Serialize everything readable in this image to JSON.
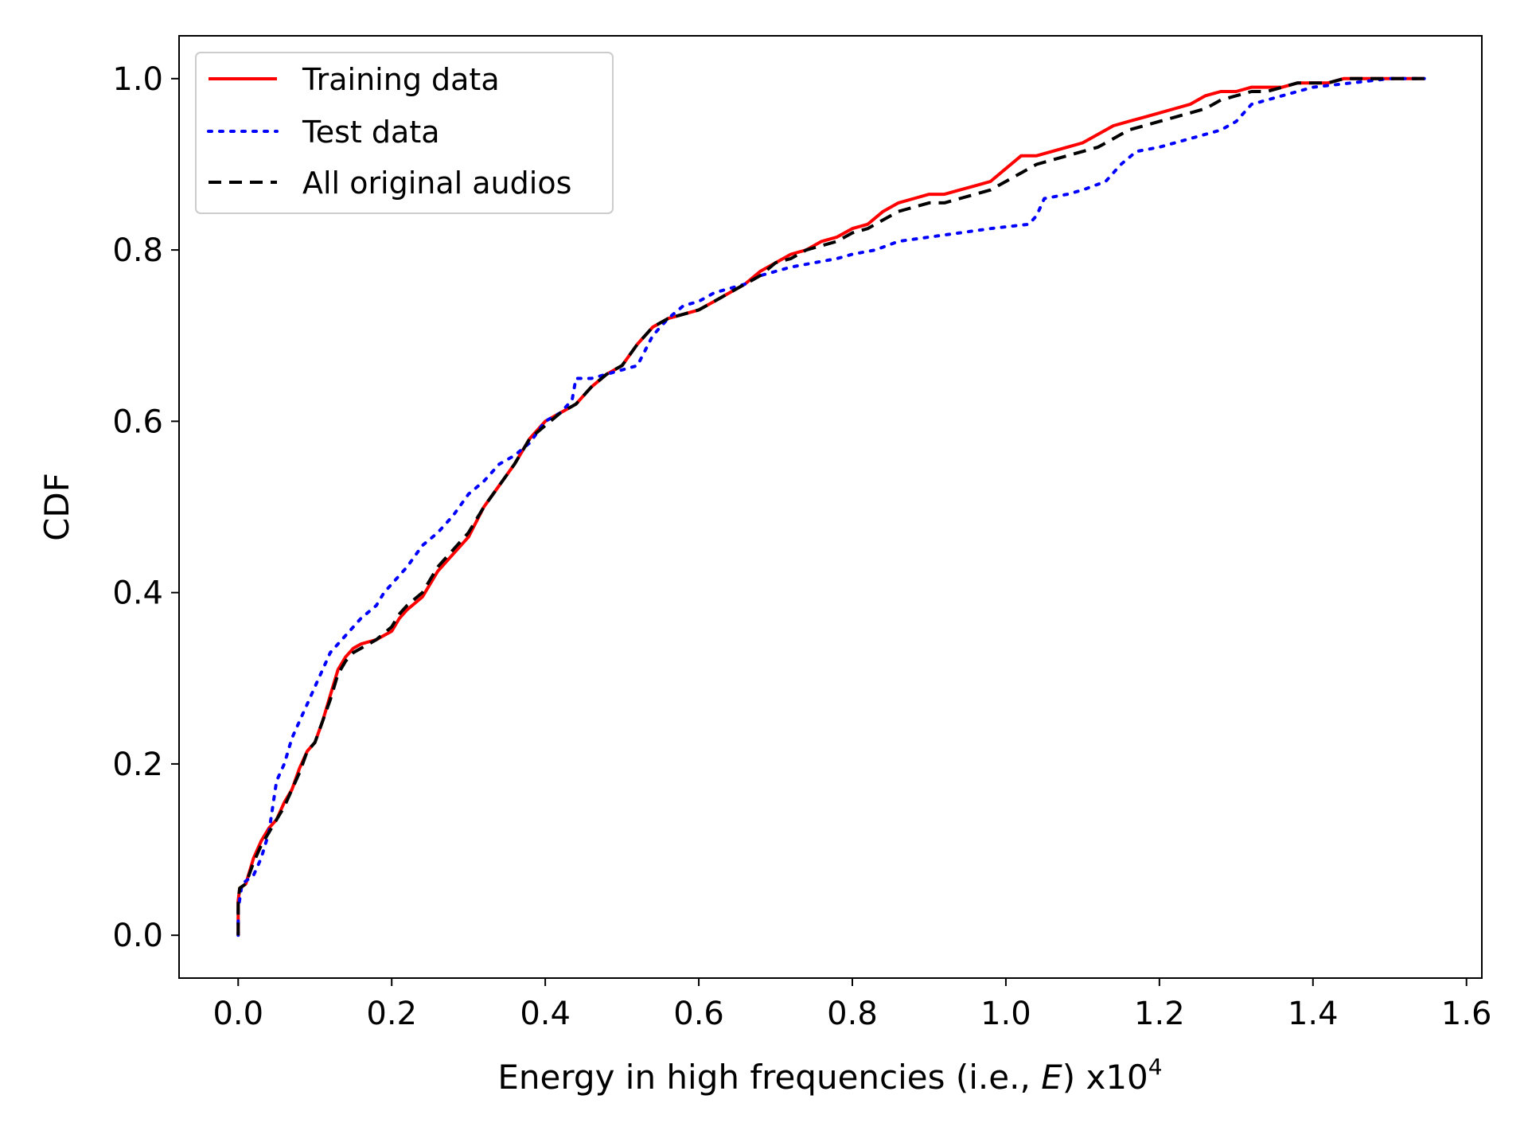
{
  "chart_data": {
    "type": "line",
    "title": "",
    "xlabel": "Energy in high frequencies (i.e., ",
    "xlabel_var": "E",
    "xlabel_suffix": ") x10",
    "xlabel_exponent": "4",
    "ylabel": "CDF",
    "xlim": [
      -0.077,
      1.62
    ],
    "ylim": [
      -0.05,
      1.05
    ],
    "x_ticks": [
      0.0,
      0.2,
      0.4,
      0.6,
      0.8,
      1.0,
      1.2,
      1.4,
      1.6
    ],
    "x_tick_labels": [
      "0.0",
      "0.2",
      "0.4",
      "0.6",
      "0.8",
      "1.0",
      "1.2",
      "1.4",
      "1.6"
    ],
    "y_ticks": [
      0.0,
      0.2,
      0.4,
      0.6,
      0.8,
      1.0
    ],
    "y_tick_labels": [
      "0.0",
      "0.2",
      "0.4",
      "0.6",
      "0.8",
      "1.0"
    ],
    "grid": false,
    "legend_position": "top-left",
    "series": [
      {
        "name": "Training data",
        "color": "#ff0000",
        "style": "solid",
        "x": [
          0.0,
          0.0,
          0.002,
          0.01,
          0.02,
          0.03,
          0.04,
          0.05,
          0.06,
          0.07,
          0.08,
          0.09,
          0.1,
          0.11,
          0.12,
          0.13,
          0.14,
          0.15,
          0.16,
          0.18,
          0.2,
          0.21,
          0.22,
          0.24,
          0.26,
          0.28,
          0.3,
          0.32,
          0.34,
          0.36,
          0.38,
          0.4,
          0.42,
          0.44,
          0.46,
          0.48,
          0.5,
          0.52,
          0.54,
          0.56,
          0.58,
          0.6,
          0.62,
          0.64,
          0.66,
          0.68,
          0.7,
          0.72,
          0.74,
          0.76,
          0.78,
          0.8,
          0.82,
          0.84,
          0.86,
          0.88,
          0.9,
          0.92,
          0.94,
          0.96,
          0.98,
          1.0,
          1.02,
          1.04,
          1.06,
          1.08,
          1.1,
          1.12,
          1.14,
          1.16,
          1.18,
          1.2,
          1.22,
          1.24,
          1.26,
          1.28,
          1.3,
          1.32,
          1.34,
          1.36,
          1.38,
          1.4,
          1.42,
          1.44,
          1.46,
          1.48,
          1.5,
          1.52,
          1.545
        ],
        "y": [
          0.0,
          0.04,
          0.055,
          0.06,
          0.09,
          0.11,
          0.125,
          0.135,
          0.155,
          0.17,
          0.195,
          0.215,
          0.225,
          0.25,
          0.28,
          0.31,
          0.325,
          0.335,
          0.34,
          0.345,
          0.355,
          0.37,
          0.38,
          0.395,
          0.425,
          0.445,
          0.465,
          0.5,
          0.525,
          0.55,
          0.58,
          0.6,
          0.61,
          0.62,
          0.64,
          0.655,
          0.665,
          0.69,
          0.71,
          0.72,
          0.725,
          0.73,
          0.74,
          0.75,
          0.76,
          0.775,
          0.785,
          0.795,
          0.8,
          0.81,
          0.815,
          0.825,
          0.83,
          0.845,
          0.855,
          0.86,
          0.865,
          0.865,
          0.87,
          0.875,
          0.88,
          0.895,
          0.91,
          0.91,
          0.915,
          0.92,
          0.925,
          0.935,
          0.945,
          0.95,
          0.955,
          0.96,
          0.965,
          0.97,
          0.98,
          0.985,
          0.985,
          0.99,
          0.99,
          0.99,
          0.995,
          0.995,
          0.995,
          1.0,
          1.0,
          1.0,
          1.0,
          1.0,
          1.0
        ]
      },
      {
        "name": "Test data",
        "color": "#0000ff",
        "style": "dotted",
        "x": [
          0.0,
          0.0,
          0.005,
          0.02,
          0.03,
          0.04,
          0.05,
          0.06,
          0.07,
          0.08,
          0.09,
          0.1,
          0.11,
          0.12,
          0.13,
          0.14,
          0.15,
          0.16,
          0.18,
          0.19,
          0.2,
          0.22,
          0.24,
          0.26,
          0.28,
          0.3,
          0.32,
          0.34,
          0.36,
          0.38,
          0.4,
          0.42,
          0.435,
          0.44,
          0.46,
          0.48,
          0.5,
          0.52,
          0.54,
          0.56,
          0.58,
          0.6,
          0.62,
          0.64,
          0.66,
          0.68,
          0.7,
          0.72,
          0.75,
          0.78,
          0.8,
          0.83,
          0.86,
          0.9,
          0.94,
          0.98,
          1.03,
          1.04,
          1.05,
          1.08,
          1.1,
          1.13,
          1.15,
          1.17,
          1.2,
          1.24,
          1.28,
          1.3,
          1.32,
          1.36,
          1.4,
          1.45,
          1.5,
          1.545
        ],
        "y": [
          0.0,
          0.03,
          0.06,
          0.07,
          0.09,
          0.12,
          0.18,
          0.2,
          0.23,
          0.25,
          0.27,
          0.29,
          0.31,
          0.33,
          0.34,
          0.35,
          0.36,
          0.37,
          0.385,
          0.4,
          0.41,
          0.43,
          0.455,
          0.47,
          0.49,
          0.515,
          0.53,
          0.55,
          0.56,
          0.575,
          0.6,
          0.61,
          0.625,
          0.65,
          0.65,
          0.655,
          0.66,
          0.665,
          0.7,
          0.72,
          0.735,
          0.74,
          0.75,
          0.755,
          0.76,
          0.77,
          0.775,
          0.78,
          0.785,
          0.79,
          0.795,
          0.8,
          0.81,
          0.815,
          0.82,
          0.825,
          0.83,
          0.84,
          0.86,
          0.865,
          0.87,
          0.88,
          0.9,
          0.915,
          0.92,
          0.93,
          0.94,
          0.95,
          0.97,
          0.98,
          0.99,
          0.995,
          1.0,
          1.0
        ]
      },
      {
        "name": "All original audios",
        "color": "#000000",
        "style": "dashed",
        "x": [
          0.0,
          0.0,
          0.002,
          0.01,
          0.02,
          0.03,
          0.04,
          0.05,
          0.06,
          0.07,
          0.08,
          0.09,
          0.1,
          0.11,
          0.12,
          0.13,
          0.14,
          0.15,
          0.16,
          0.18,
          0.2,
          0.21,
          0.22,
          0.24,
          0.26,
          0.28,
          0.3,
          0.32,
          0.34,
          0.36,
          0.38,
          0.4,
          0.42,
          0.44,
          0.46,
          0.48,
          0.5,
          0.52,
          0.54,
          0.56,
          0.58,
          0.6,
          0.62,
          0.64,
          0.66,
          0.68,
          0.7,
          0.72,
          0.74,
          0.76,
          0.78,
          0.8,
          0.82,
          0.84,
          0.86,
          0.88,
          0.9,
          0.92,
          0.94,
          0.96,
          0.98,
          1.0,
          1.02,
          1.04,
          1.06,
          1.08,
          1.1,
          1.12,
          1.14,
          1.16,
          1.18,
          1.2,
          1.22,
          1.24,
          1.26,
          1.28,
          1.3,
          1.32,
          1.34,
          1.36,
          1.38,
          1.4,
          1.42,
          1.44,
          1.46,
          1.48,
          1.5,
          1.52,
          1.545
        ],
        "y": [
          0.0,
          0.04,
          0.055,
          0.06,
          0.085,
          0.105,
          0.12,
          0.135,
          0.15,
          0.17,
          0.19,
          0.215,
          0.225,
          0.25,
          0.275,
          0.305,
          0.32,
          0.33,
          0.335,
          0.345,
          0.36,
          0.375,
          0.385,
          0.4,
          0.43,
          0.45,
          0.47,
          0.5,
          0.525,
          0.55,
          0.58,
          0.595,
          0.61,
          0.62,
          0.64,
          0.655,
          0.665,
          0.69,
          0.71,
          0.72,
          0.725,
          0.73,
          0.74,
          0.75,
          0.76,
          0.77,
          0.785,
          0.79,
          0.8,
          0.805,
          0.81,
          0.82,
          0.825,
          0.835,
          0.845,
          0.85,
          0.855,
          0.855,
          0.86,
          0.865,
          0.87,
          0.88,
          0.89,
          0.9,
          0.905,
          0.91,
          0.915,
          0.92,
          0.93,
          0.94,
          0.945,
          0.95,
          0.955,
          0.96,
          0.965,
          0.975,
          0.98,
          0.985,
          0.985,
          0.99,
          0.995,
          0.995,
          0.995,
          1.0,
          1.0,
          1.0,
          1.0,
          1.0,
          1.0
        ]
      }
    ]
  }
}
